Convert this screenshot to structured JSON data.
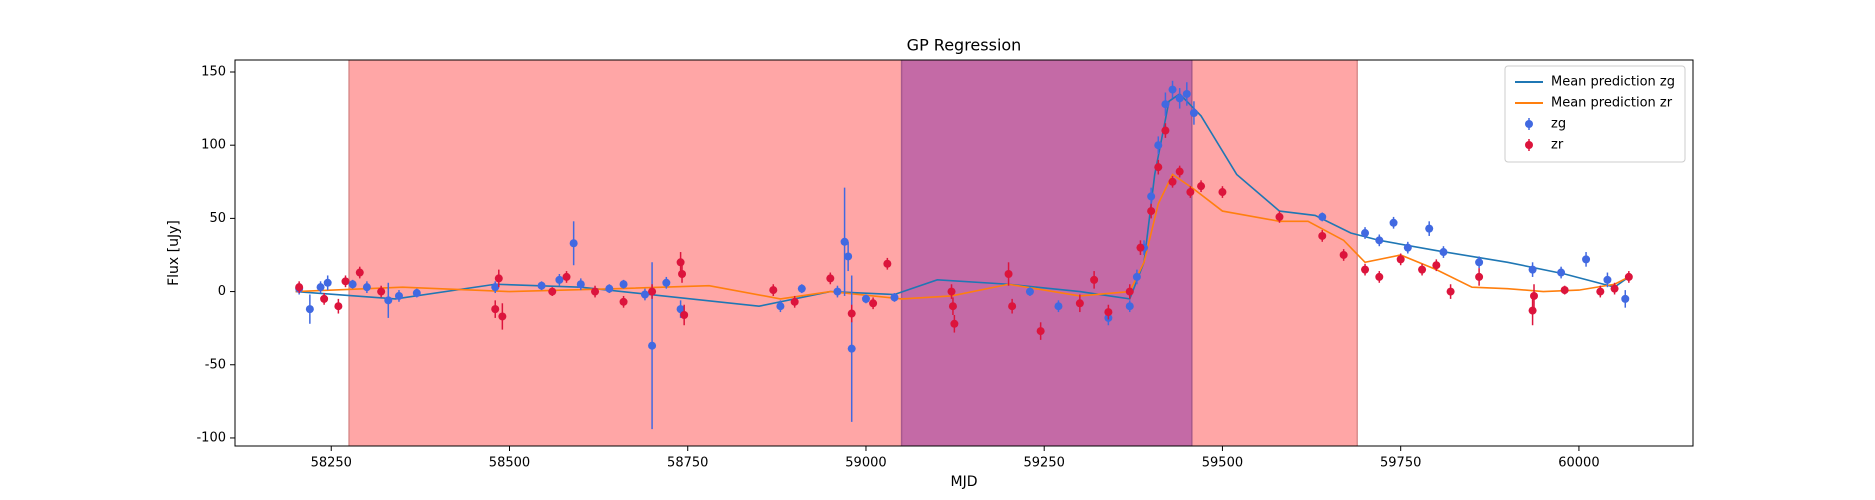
{
  "chart_data": {
    "type": "scatter",
    "title": "GP Regression",
    "x_label": "MJD",
    "y_label": "Flux [uJy]",
    "xlim": [
      58115,
      60160
    ],
    "ylim": [
      -105.5,
      158.2
    ],
    "xticks": [
      58250,
      58500,
      58750,
      59000,
      59250,
      59500,
      59750,
      60000
    ],
    "yticks": [
      -100,
      -50,
      0,
      50,
      100,
      150
    ],
    "legend": "upper right",
    "spans": [
      {
        "xlim": [
          58275,
          59689
        ],
        "color": "#ffa6a6"
      },
      {
        "xlim": [
          59050,
          59457
        ],
        "color": "#c46aa6"
      }
    ],
    "lines": [
      {
        "name": "Mean prediction zg",
        "color": "#1f77b4",
        "x": [
          58200,
          58340,
          58480,
          58600,
          58850,
          58950,
          59040,
          59100,
          59200,
          59300,
          59370,
          59390,
          59405,
          59425,
          59440,
          59470,
          59520,
          59580,
          59630,
          59680,
          59720,
          59800,
          59900,
          59980,
          60050,
          60070
        ],
        "values": [
          0,
          -5,
          5,
          3,
          -10,
          0,
          -2,
          8,
          5,
          0,
          -5,
          20,
          80,
          130,
          135,
          120,
          80,
          55,
          52,
          40,
          35,
          28,
          20,
          12,
          3,
          10
        ]
      },
      {
        "name": "Mean prediction zr",
        "color": "#ff7f0e",
        "x": [
          58200,
          58350,
          58500,
          58650,
          58780,
          58880,
          58950,
          59050,
          59120,
          59200,
          59300,
          59370,
          59390,
          59410,
          59430,
          59460,
          59500,
          59580,
          59620,
          59670,
          59700,
          59750,
          59800,
          59850,
          59900,
          59950,
          60000,
          60050,
          60070
        ],
        "values": [
          0,
          3,
          0,
          2,
          4,
          -5,
          0,
          -5,
          -3,
          5,
          -3,
          0,
          20,
          60,
          80,
          70,
          55,
          48,
          48,
          35,
          20,
          25,
          15,
          3,
          2,
          0,
          1,
          5,
          10
        ]
      }
    ],
    "series": [
      {
        "name": "zg",
        "color": "#4169e1",
        "x": [
          58205,
          58220,
          58235,
          58245,
          58280,
          58300,
          58330,
          58345,
          58370,
          58480,
          58545,
          58570,
          58590,
          58600,
          58640,
          58660,
          58690,
          58700,
          58720,
          58740,
          58880,
          58910,
          58960,
          58970,
          58975,
          58980,
          59000,
          59040,
          59230,
          59270,
          59340,
          59370,
          59380,
          59390,
          59400,
          59410,
          59420,
          59430,
          59440,
          59450,
          59460,
          59640,
          59700,
          59720,
          59740,
          59760,
          59790,
          59810,
          59860,
          59935,
          59975,
          60010,
          60040,
          60065
        ],
        "values": [
          2,
          -12,
          3,
          6,
          5,
          3,
          -6,
          -3,
          -1,
          3,
          4,
          8,
          33,
          5,
          2,
          5,
          -2,
          -37,
          6,
          -12,
          -10,
          2,
          0,
          34,
          24,
          -39,
          -5,
          -4,
          0,
          -10,
          -18,
          -10,
          10,
          30,
          65,
          100,
          128,
          138,
          132,
          135,
          122,
          51,
          40,
          35,
          47,
          30,
          43,
          27,
          20,
          15,
          13,
          22,
          8,
          -5
        ],
        "errors": [
          4,
          10,
          4,
          5,
          3,
          4,
          12,
          4,
          3,
          4,
          3,
          4,
          15,
          4,
          3,
          3,
          4,
          57,
          4,
          6,
          4,
          3,
          4,
          37,
          10,
          50,
          3,
          3,
          3,
          4,
          5,
          4,
          5,
          5,
          6,
          6,
          8,
          6,
          7,
          8,
          8,
          3,
          4,
          4,
          4,
          4,
          5,
          4,
          4,
          5,
          4,
          5,
          5,
          6
        ]
      },
      {
        "name": "zr",
        "color": "#dc143c",
        "x": [
          58205,
          58240,
          58260,
          58270,
          58290,
          58320,
          58480,
          58485,
          58490,
          58560,
          58580,
          58620,
          58660,
          58700,
          58740,
          58742,
          58745,
          58870,
          58900,
          58950,
          58980,
          59010,
          59030,
          59120,
          59122,
          59124,
          59200,
          59205,
          59245,
          59300,
          59320,
          59340,
          59370,
          59385,
          59400,
          59410,
          59420,
          59430,
          59440,
          59455,
          59470,
          59500,
          59580,
          59640,
          59670,
          59700,
          59720,
          59750,
          59780,
          59800,
          59820,
          59860,
          59935,
          59937,
          59980,
          60030,
          60050,
          60070
        ],
        "values": [
          3,
          -5,
          -10,
          7,
          13,
          0,
          -12,
          9,
          -17,
          0,
          10,
          0,
          -7,
          0,
          20,
          12,
          -16,
          1,
          -7,
          9,
          -15,
          -8,
          19,
          0,
          -10,
          -22,
          12,
          -10,
          -27,
          -8,
          8,
          -14,
          0,
          30,
          55,
          85,
          110,
          75,
          82,
          68,
          72,
          68,
          51,
          38,
          25,
          15,
          10,
          22,
          15,
          18,
          0,
          10,
          -13,
          -3,
          1,
          0,
          2,
          10
        ],
        "errors": [
          4,
          4,
          5,
          4,
          4,
          4,
          6,
          6,
          9,
          3,
          4,
          4,
          4,
          5,
          7,
          6,
          7,
          4,
          4,
          4,
          6,
          4,
          4,
          5,
          6,
          6,
          8,
          5,
          6,
          6,
          6,
          5,
          5,
          5,
          5,
          5,
          5,
          4,
          4,
          4,
          4,
          4,
          4,
          4,
          4,
          4,
          4,
          4,
          4,
          4,
          5,
          6,
          10,
          8,
          3,
          4,
          4,
          4
        ]
      }
    ]
  }
}
